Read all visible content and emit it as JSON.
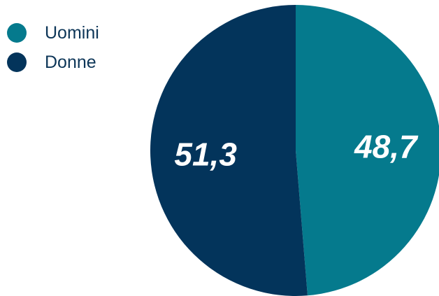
{
  "chart_data": {
    "type": "pie",
    "slices": [
      {
        "label": "Uomini",
        "value": 48.7,
        "value_label": "48,7",
        "color": "#057a8d"
      },
      {
        "label": "Donne",
        "value": 51.3,
        "value_label": "51,3",
        "color": "#03345b"
      }
    ],
    "start_direction": "top",
    "legend_position": "top-left"
  }
}
